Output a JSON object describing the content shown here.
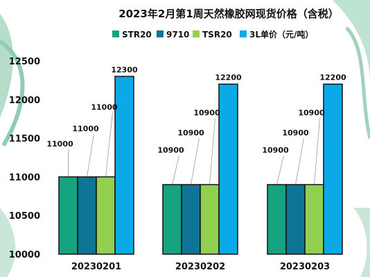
{
  "chart_data": {
    "type": "bar",
    "title": "2023年2月第1周天然橡胶网现货价格（含税）",
    "categories": [
      "20230201",
      "20230202",
      "20230203"
    ],
    "series": [
      {
        "name": "STR20",
        "values": [
          11000,
          10900,
          10900
        ],
        "color": "#16a37f"
      },
      {
        "name": "9710",
        "values": [
          11000,
          10900,
          10900
        ],
        "color": "#0e7597"
      },
      {
        "name": "TSR20",
        "values": [
          11000,
          10900,
          10900
        ],
        "color": "#92d050"
      },
      {
        "name": "3L单价（元/吨）",
        "values": [
          12300,
          12200,
          12200
        ],
        "color": "#0aaae8"
      }
    ],
    "yticks": [
      10000,
      10500,
      11000,
      11500,
      12000,
      12500
    ],
    "ylim": [
      10000,
      12500
    ],
    "grid": false,
    "legend_position": "top",
    "data_labels": true,
    "xlabel": "",
    "ylabel": ""
  }
}
